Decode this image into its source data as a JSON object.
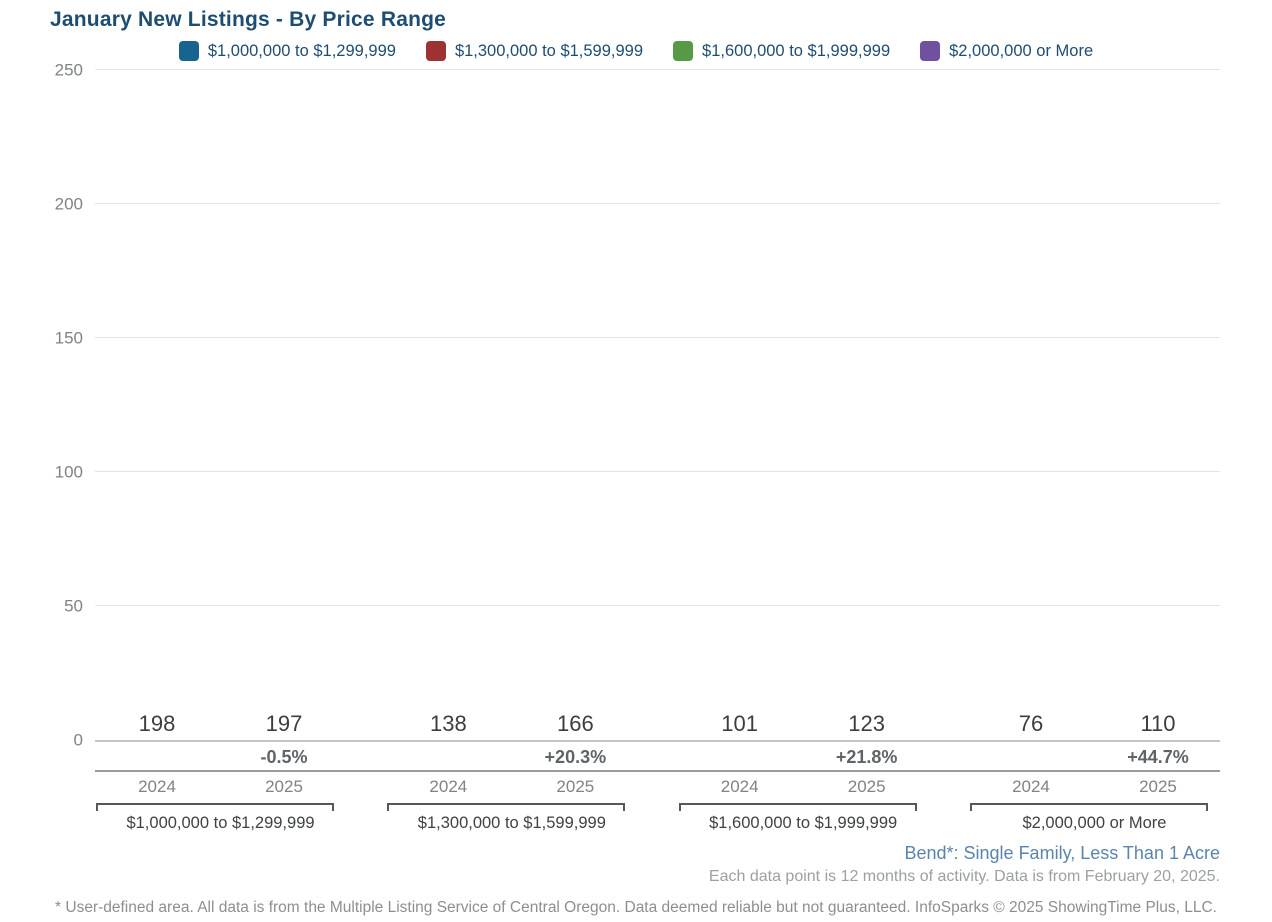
{
  "header": {
    "title": "January New Listings - By Price Range"
  },
  "chart_data": {
    "type": "bar",
    "title": "January New Listings - By Price Range",
    "categories": [
      "2024",
      "2025"
    ],
    "groups": [
      {
        "label": "$1,000,000 to $1,299,999",
        "color": "#16648f",
        "values": [
          198,
          197
        ],
        "change": "-0.5%"
      },
      {
        "label": "$1,300,000 to $1,599,999",
        "color": "#9e3233",
        "values": [
          138,
          166
        ],
        "change": "+20.3%"
      },
      {
        "label": "$1,600,000 to $1,999,999",
        "color": "#579a46",
        "values": [
          101,
          123
        ],
        "change": "+21.8%"
      },
      {
        "label": "$2,000,000 or More",
        "color": "#6f519f",
        "values": [
          76,
          110
        ],
        "change": "+44.7%"
      }
    ],
    "y_axis": {
      "min": 0,
      "max": 250,
      "step": 50,
      "ticks": [
        0,
        50,
        100,
        150,
        200,
        250
      ]
    },
    "grid": true,
    "legend_position": "top",
    "xlabel": "",
    "ylabel": ""
  },
  "footer": {
    "area_descriptor": "Bend*: Single Family, Less Than 1 Acre",
    "data_note": "Each data point is 12 months of activity. Data is from February 20, 2025.",
    "disclaimer": "* User-defined area. All data is from the Multiple Listing Service of Central Oregon. Data deemed reliable but not guaranteed. InfoSparks © 2025 ShowingTime Plus, LLC."
  },
  "colors": {
    "title_text": "#1e4d72",
    "legend_text": "#1e4d72",
    "axis_text": "#7f8386",
    "value_text": "#3d3d3d",
    "percent_text": "#5f6468",
    "area_descriptor_text": "#5b84ad",
    "note_text": "#9aa0a3",
    "gridline": "#e3e4e5",
    "zero_line": "#c3c5c7"
  }
}
